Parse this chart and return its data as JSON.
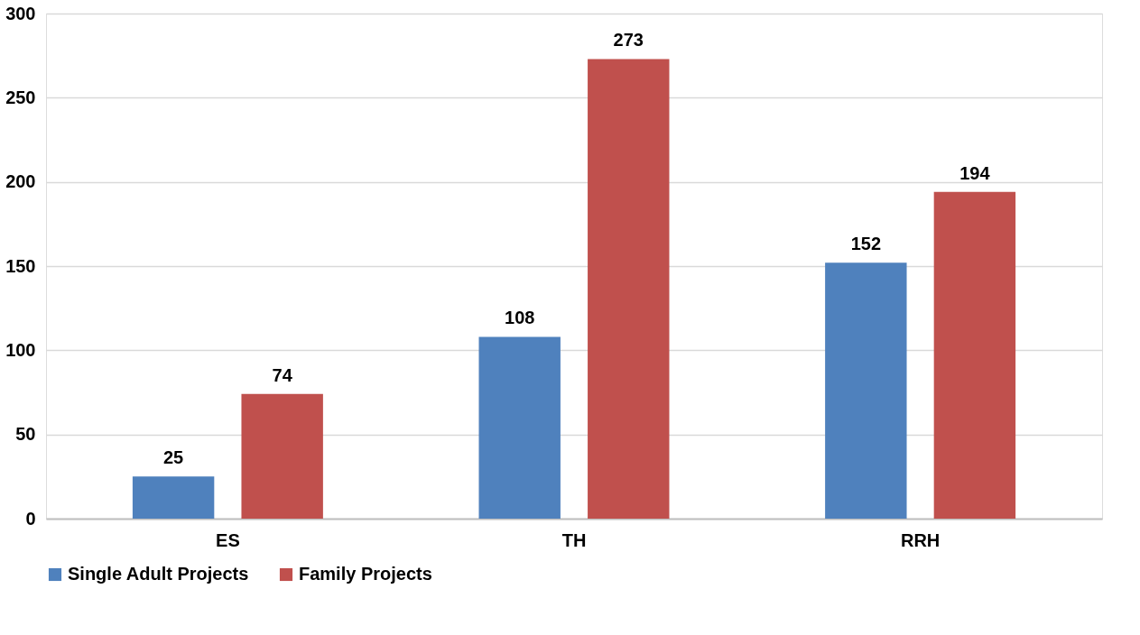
{
  "chart_data": {
    "type": "bar",
    "categories": [
      "ES",
      "TH",
      "RRH"
    ],
    "series": [
      {
        "name": "Single Adult Projects",
        "color": "#4f81bd",
        "values": [
          25,
          108,
          152
        ]
      },
      {
        "name": "Family Projects",
        "color": "#c0504d",
        "values": [
          74,
          273,
          194
        ]
      }
    ],
    "ylim": [
      0,
      300
    ],
    "yticks": [
      0,
      50,
      100,
      150,
      200,
      250,
      300
    ],
    "grid": "y",
    "legend": "bottom",
    "data_labels": true
  }
}
